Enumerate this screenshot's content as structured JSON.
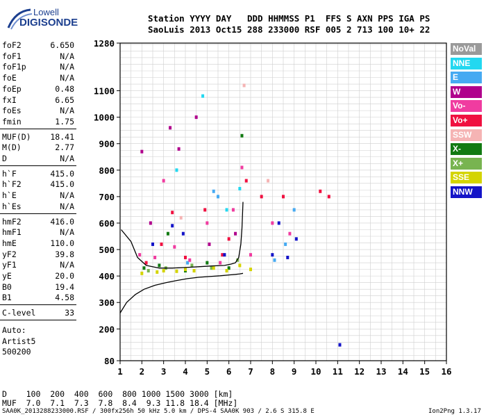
{
  "logo": {
    "top": "Lowell",
    "bottom": "DIGISONDE"
  },
  "header": {
    "row1": "Station YYYY DAY   DDD HHMMSS P1  FFS S AXN PPS IGA PS",
    "row2": "SaoLuis 2013 Oct15 288 233000 RSF 005 2 713 100 10+ 22"
  },
  "params_group1": [
    {
      "name": "foF2",
      "value": "6.650"
    },
    {
      "name": "foF1",
      "value": "N/A"
    },
    {
      "name": "foF1p",
      "value": "N/A"
    },
    {
      "name": "foE",
      "value": "N/A"
    },
    {
      "name": "foEp",
      "value": "0.48"
    },
    {
      "name": "fxI",
      "value": "6.65"
    },
    {
      "name": "foEs",
      "value": "N/A"
    },
    {
      "name": "fmin",
      "value": "1.75"
    }
  ],
  "params_group2": [
    {
      "name": "MUF(D)",
      "value": "18.41"
    },
    {
      "name": "M(D)",
      "value": "2.77"
    },
    {
      "name": "D",
      "value": "N/A"
    }
  ],
  "params_group3": [
    {
      "name": "h`F",
      "value": "415.0"
    },
    {
      "name": "h`F2",
      "value": "415.0"
    },
    {
      "name": "h`E",
      "value": "N/A"
    },
    {
      "name": "h`Es",
      "value": "N/A"
    }
  ],
  "params_group4": [
    {
      "name": "hmF2",
      "value": "416.0"
    },
    {
      "name": "hmF1",
      "value": "N/A"
    },
    {
      "name": "hmE",
      "value": "110.0"
    },
    {
      "name": "yF2",
      "value": "39.8"
    },
    {
      "name": "yF1",
      "value": "N/A"
    },
    {
      "name": "yE",
      "value": "20.0"
    },
    {
      "name": "B0",
      "value": "19.4"
    },
    {
      "name": "B1",
      "value": "4.58"
    }
  ],
  "params_group5": [
    {
      "name": "C-level",
      "value": "33"
    }
  ],
  "auto_lines": [
    "Auto:",
    "Artist5",
    "500200"
  ],
  "legend": [
    {
      "label": "NoVal",
      "color": "#9a9a9a"
    },
    {
      "label": "NNE",
      "color": "#22d8f0"
    },
    {
      "label": "E",
      "color": "#46aaf2"
    },
    {
      "label": "W",
      "color": "#b0008c"
    },
    {
      "label": "Vo-",
      "color": "#f03ca0"
    },
    {
      "label": "Vo+",
      "color": "#f01040"
    },
    {
      "label": "SSW",
      "color": "#f5b4b4"
    },
    {
      "label": "X-",
      "color": "#127a12"
    },
    {
      "label": "X+",
      "color": "#78b450"
    },
    {
      "label": "SSE",
      "color": "#d4d400"
    },
    {
      "label": "NNW",
      "color": "#1414c8"
    }
  ],
  "muf_table": {
    "d_row": "D    100  200  400  600  800 1000 1500 3000 [km]",
    "muf_row": "MUF  7.0  7.1  7.3  7.8  8.4  9.3 11.8 18.4 [MHz]"
  },
  "footer": {
    "left": "SAA0K_2013288233000.RSF / 300fx256h 50 kHz 5.0 km / DPS-4 SAA0K 903 / 2.6 S 315.8 E",
    "right": "Ion2Png 1.3.17"
  },
  "chart_data": {
    "type": "scatter",
    "title": "",
    "xlabel": "",
    "ylabel": "",
    "xlim": [
      1,
      16
    ],
    "ylim": [
      80,
      1280
    ],
    "x_ticks": [
      1,
      2,
      3,
      4,
      5,
      6,
      7,
      8,
      9,
      10,
      11,
      12,
      13,
      14,
      15,
      16
    ],
    "y_ticks": [
      80,
      200,
      300,
      400,
      500,
      600,
      700,
      800,
      900,
      1000,
      1100,
      1280
    ],
    "grid": true,
    "legend_position": "right",
    "series": [
      {
        "name": "NNE",
        "x": [
          3.6,
          4.8,
          5.9,
          6.5
        ],
        "y": [
          800,
          1080,
          650,
          730
        ]
      },
      {
        "name": "E",
        "x": [
          4.1,
          5.3,
          5.5,
          8.1,
          8.6,
          9.0
        ],
        "y": [
          450,
          720,
          700,
          460,
          520,
          650
        ]
      },
      {
        "name": "W",
        "x": [
          2.0,
          2.4,
          3.3,
          3.7,
          4.5,
          5.1,
          6.3
        ],
        "y": [
          870,
          600,
          960,
          880,
          1000,
          520,
          560
        ]
      },
      {
        "name": "Vo-",
        "x": [
          1.9,
          2.6,
          3.0,
          3.5,
          4.2,
          5.0,
          5.6,
          6.2,
          6.6,
          7.0,
          8.0,
          8.8
        ],
        "y": [
          480,
          470,
          760,
          510,
          460,
          600,
          450,
          650,
          810,
          480,
          600,
          560
        ]
      },
      {
        "name": "Vo+",
        "x": [
          2.2,
          2.9,
          3.4,
          4.0,
          4.9,
          5.7,
          6.0,
          6.8,
          7.5,
          8.5,
          10.2,
          10.6
        ],
        "y": [
          450,
          520,
          640,
          470,
          650,
          480,
          540,
          760,
          700,
          700,
          720,
          700
        ]
      },
      {
        "name": "SSW",
        "x": [
          3.8,
          6.7,
          7.8
        ],
        "y": [
          620,
          1120,
          760
        ]
      },
      {
        "name": "X-",
        "x": [
          2.1,
          2.8,
          3.2,
          4.0,
          5.0,
          6.0,
          6.6
        ],
        "y": [
          430,
          440,
          560,
          420,
          450,
          430,
          930
        ]
      },
      {
        "name": "X+",
        "x": [
          2.3,
          3.1,
          4.3,
          5.2,
          6.4
        ],
        "y": [
          420,
          430,
          440,
          430,
          460
        ]
      },
      {
        "name": "SSE",
        "x": [
          2.0,
          2.7,
          3.0,
          3.6,
          4.0,
          4.4,
          5.3,
          5.9,
          6.5,
          7.0
        ],
        "y": [
          410,
          415,
          420,
          418,
          425,
          420,
          430,
          420,
          440,
          425
        ]
      },
      {
        "name": "NNW",
        "x": [
          2.5,
          3.4,
          3.9,
          5.8,
          8.0,
          8.3,
          8.7,
          9.1,
          11.1
        ],
        "y": [
          520,
          590,
          560,
          480,
          480,
          600,
          470,
          540,
          140
        ]
      }
    ],
    "traces": [
      {
        "name": "profile",
        "x": [
          1.0,
          1.3,
          1.7,
          2.1,
          2.6,
          3.1,
          3.6,
          4.1,
          4.6,
          5.1,
          5.6,
          6.0,
          6.3,
          6.5,
          6.65
        ],
        "y": [
          260,
          300,
          330,
          350,
          365,
          375,
          383,
          390,
          395,
          398,
          401,
          404,
          406,
          408,
          410
        ]
      },
      {
        "name": "trace",
        "x": [
          1.05,
          1.5,
          1.8,
          2.2,
          2.8,
          3.4,
          4.0,
          4.6,
          5.2,
          5.8,
          6.1,
          6.3,
          6.45,
          6.55,
          6.6,
          6.65
        ],
        "y": [
          575,
          530,
          470,
          440,
          430,
          430,
          432,
          435,
          438,
          440,
          445,
          450,
          470,
          520,
          580,
          680
        ]
      }
    ]
  }
}
